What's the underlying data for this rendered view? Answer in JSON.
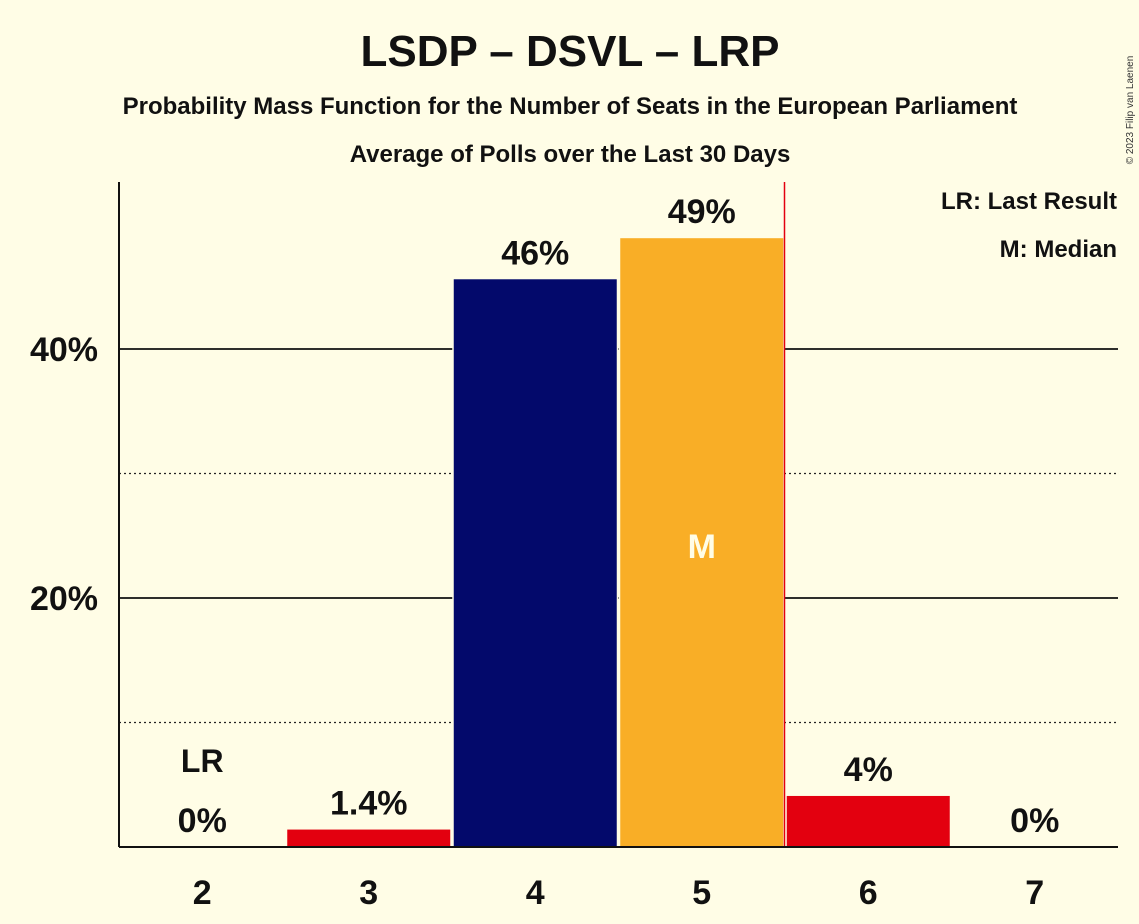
{
  "chart_data": {
    "type": "bar",
    "title": "LSDP – DSVL – LRP",
    "subtitle": "Probability Mass Function for the Number of Seats in the European Parliament",
    "subtitle2": "Average of Polls over the Last 30 Days",
    "copyright": "© 2023 Filip van Laenen",
    "categories": [
      "2",
      "3",
      "4",
      "5",
      "6",
      "7"
    ],
    "values": [
      0,
      1.4,
      45.6,
      48.9,
      4.1,
      0
    ],
    "value_labels": [
      "0%",
      "1.4%",
      "46%",
      "49%",
      "4%",
      "0%"
    ],
    "bar_colors": [
      "#E3000F",
      "#E3000F",
      "#03096B",
      "#F9AE26",
      "#E3000F",
      "#E3000F"
    ],
    "ylim": [
      0,
      53
    ],
    "yticks": [
      20,
      40
    ],
    "ytick_labels": [
      "20%",
      "40%"
    ],
    "minor_gridlines": [
      10,
      30
    ],
    "last_result_marker": {
      "category": "2",
      "label": "LR"
    },
    "median_marker": {
      "category": "5",
      "label": "M"
    },
    "majority_line_after_category": "5",
    "majority_line_color": "#E3000F",
    "legend": [
      "LR: Last Result",
      "M: Median"
    ],
    "legend_position": "top-right"
  }
}
